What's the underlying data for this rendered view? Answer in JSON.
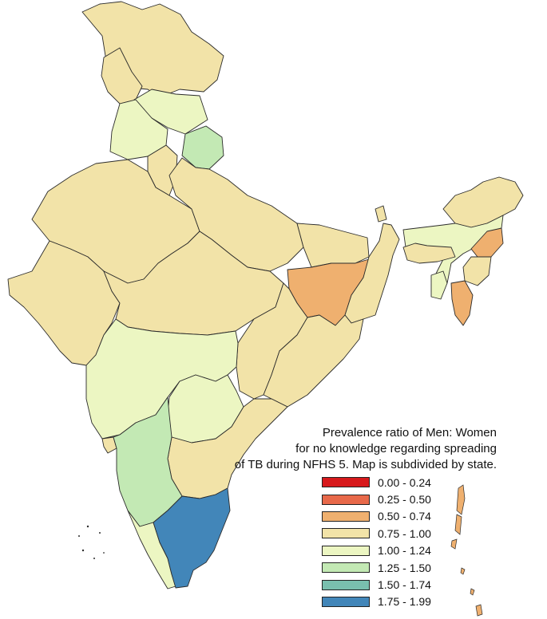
{
  "caption": {
    "line1": "Prevalence ratio of Men: Women",
    "line2": "for no knowledge regarding spreading",
    "line3": "of TB during NFHS 5. Map is subdivided by state."
  },
  "legend": [
    {
      "label": "0.00 - 0.24",
      "color": "#d7191c"
    },
    {
      "label": "0.25 - 0.50",
      "color": "#e8694a"
    },
    {
      "label": "0.50 - 0.74",
      "color": "#efb06f"
    },
    {
      "label": "0.75 - 1.00",
      "color": "#f2e3a8"
    },
    {
      "label": "1.00 - 1.24",
      "color": "#ecf6c2"
    },
    {
      "label": "1.25 - 1.50",
      "color": "#c3e9b4"
    },
    {
      "label": "1.50 - 1.74",
      "color": "#79bfae"
    },
    {
      "label": "1.75 - 1.99",
      "color": "#4286b9"
    }
  ],
  "regions": [
    {
      "name": "Jammu and Kashmir",
      "class": "0.75 - 1.00"
    },
    {
      "name": "Ladakh",
      "class": "0.75 - 1.00"
    },
    {
      "name": "Himachal Pradesh",
      "class": "1.00 - 1.24"
    },
    {
      "name": "Punjab",
      "class": "1.00 - 1.24"
    },
    {
      "name": "Uttarakhand",
      "class": "1.25 - 1.50"
    },
    {
      "name": "Haryana",
      "class": "0.75 - 1.00"
    },
    {
      "name": "Rajasthan",
      "class": "0.75 - 1.00"
    },
    {
      "name": "Uttar Pradesh",
      "class": "0.75 - 1.00"
    },
    {
      "name": "Gujarat",
      "class": "0.75 - 1.00"
    },
    {
      "name": "Madhya Pradesh",
      "class": "0.75 - 1.00"
    },
    {
      "name": "Bihar",
      "class": "0.75 - 1.00"
    },
    {
      "name": "Jharkhand",
      "class": "0.50 - 0.74"
    },
    {
      "name": "West Bengal",
      "class": "0.75 - 1.00"
    },
    {
      "name": "Chhattisgarh",
      "class": "0.75 - 1.00"
    },
    {
      "name": "Odisha",
      "class": "0.75 - 1.00"
    },
    {
      "name": "Maharashtra",
      "class": "1.00 - 1.24"
    },
    {
      "name": "Telangana",
      "class": "1.00 - 1.24"
    },
    {
      "name": "Andhra Pradesh",
      "class": "0.75 - 1.00"
    },
    {
      "name": "Karnataka",
      "class": "1.25 - 1.50"
    },
    {
      "name": "Goa",
      "class": "0.75 - 1.00"
    },
    {
      "name": "Kerala",
      "class": "1.00 - 1.24"
    },
    {
      "name": "Tamil Nadu",
      "class": "1.75 - 1.99"
    },
    {
      "name": "Sikkim",
      "class": "0.75 - 1.00"
    },
    {
      "name": "Arunachal Pradesh",
      "class": "0.75 - 1.00"
    },
    {
      "name": "Assam",
      "class": "1.00 - 1.24"
    },
    {
      "name": "Nagaland",
      "class": "0.50 - 0.74"
    },
    {
      "name": "Manipur",
      "class": "0.75 - 1.00"
    },
    {
      "name": "Meghalaya",
      "class": "0.75 - 1.00"
    },
    {
      "name": "Tripura",
      "class": "1.00 - 1.24"
    },
    {
      "name": "Mizoram",
      "class": "0.50 - 0.74"
    },
    {
      "name": "Andaman and Nicobar Islands",
      "class": "0.50 - 0.74"
    }
  ]
}
